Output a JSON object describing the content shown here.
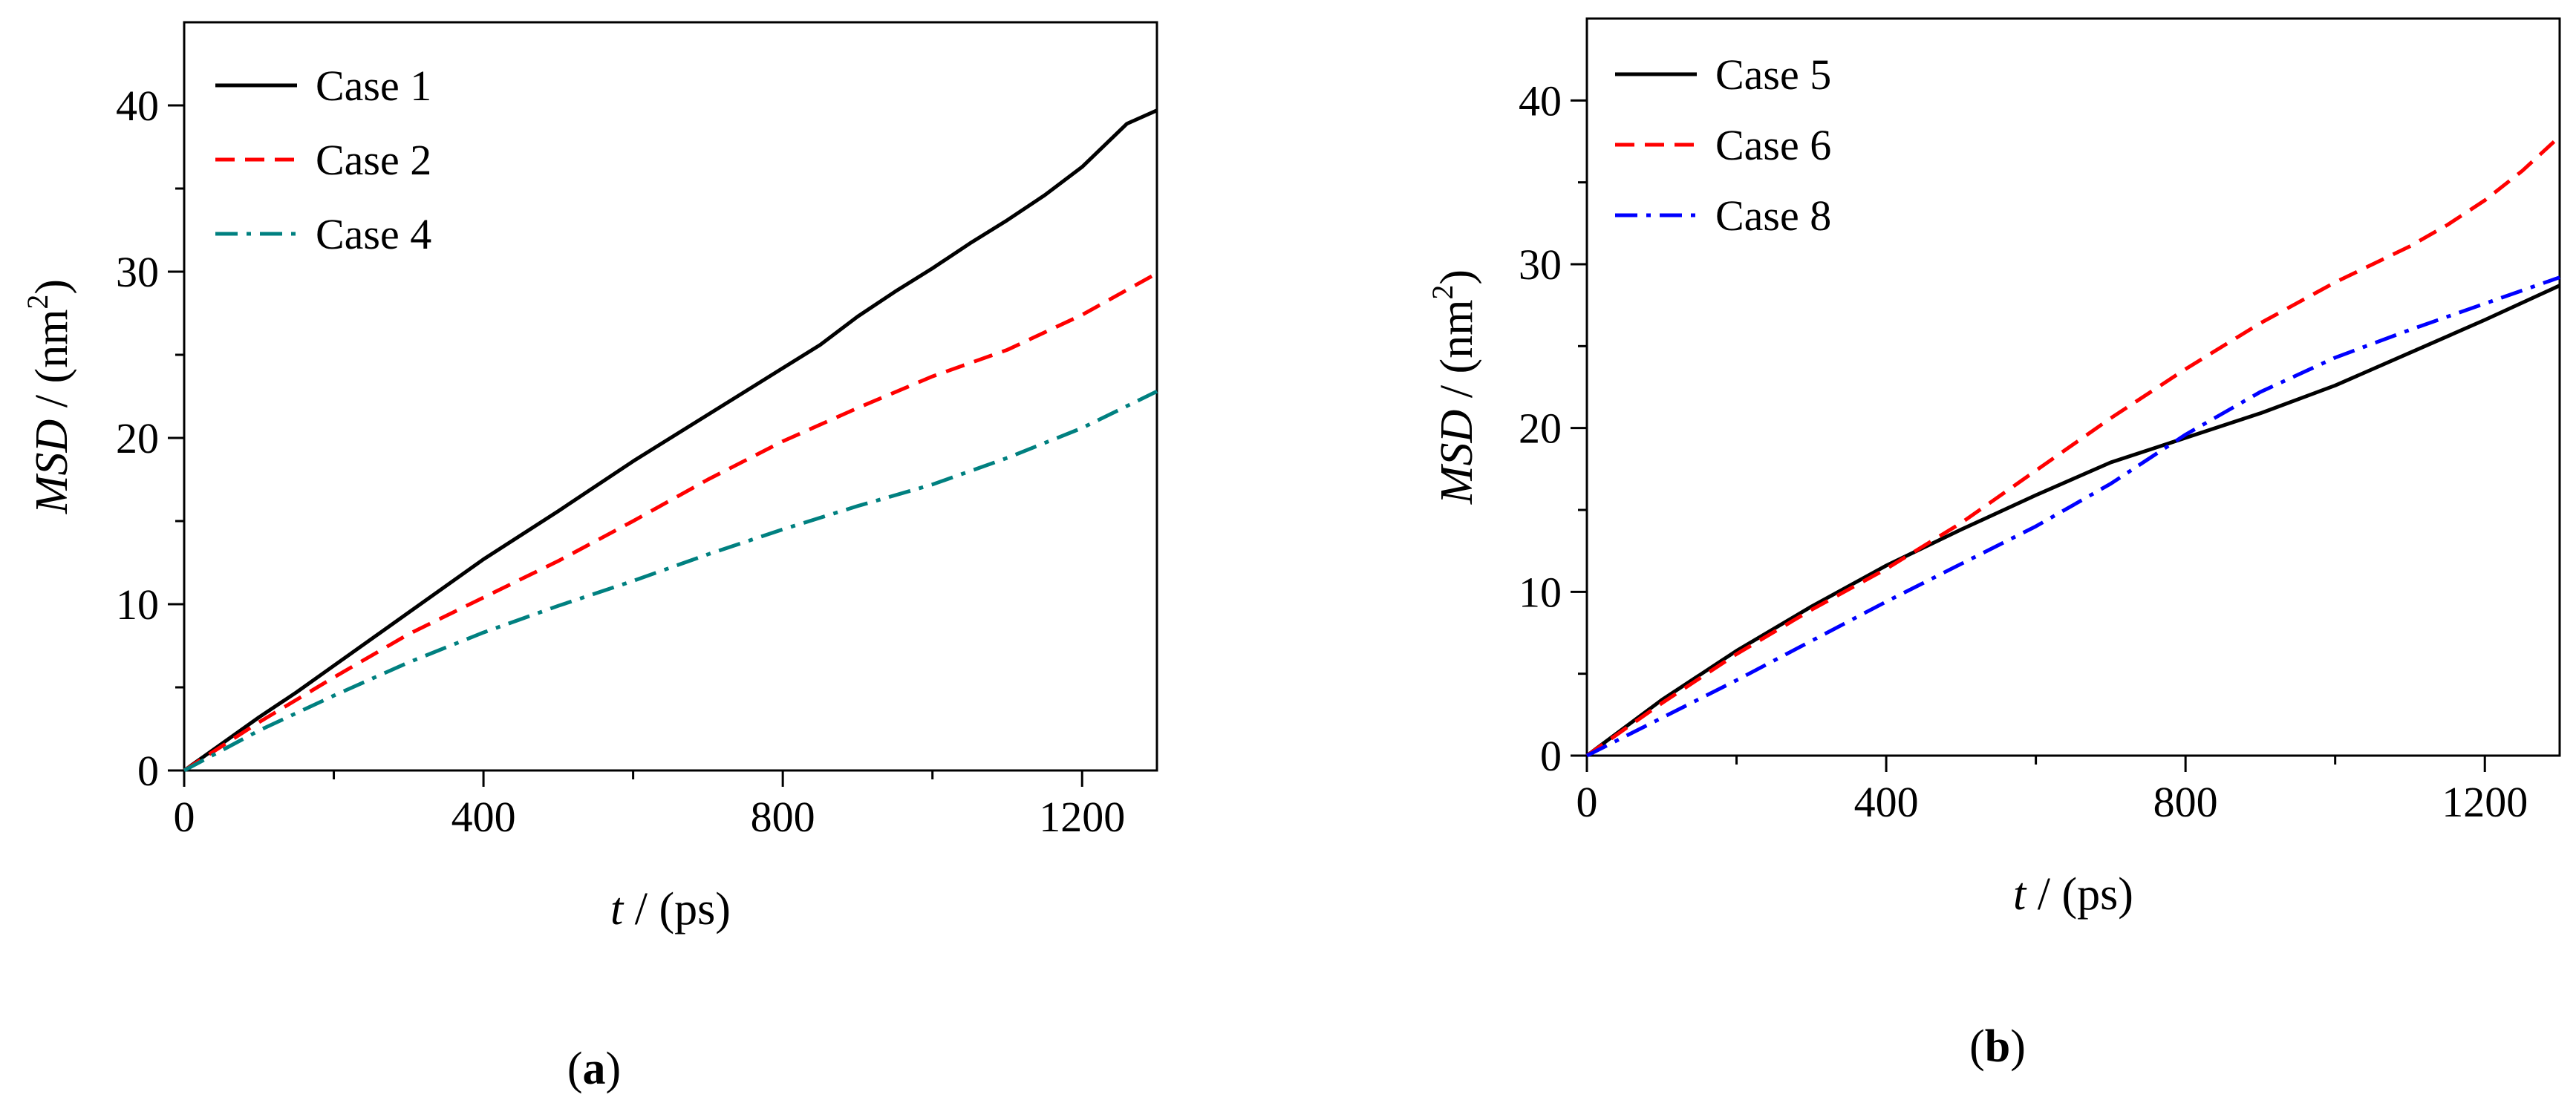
{
  "figure": {
    "panel_a_label": "a",
    "panel_b_label": "b"
  },
  "chart_data": [
    {
      "type": "line",
      "panel": "a",
      "title": "",
      "xlabel_var": "t",
      "xlabel_unit": " / (ps)",
      "ylabel_var": "MSD",
      "ylabel_unit_pre": " / (nm",
      "ylabel_sup": "2",
      "ylabel_unit_post": ")",
      "xlim": [
        0,
        1300
      ],
      "ylim": [
        0,
        45
      ],
      "xticks": [
        0,
        400,
        800,
        1200
      ],
      "xtick_labels": [
        "0",
        "400",
        "800",
        "1200"
      ],
      "yticks": [
        0,
        10,
        20,
        30,
        40
      ],
      "ytick_labels": [
        "0",
        "10",
        "20",
        "30",
        "40"
      ],
      "legend_position": "top-left",
      "series": [
        {
          "name": "Case 1",
          "color": "#000000",
          "dash": "solid",
          "x": [
            0,
            50,
            100,
            150,
            200,
            300,
            400,
            500,
            600,
            700,
            800,
            850,
            900,
            950,
            1000,
            1050,
            1100,
            1150,
            1200,
            1260,
            1300
          ],
          "y": [
            0,
            1.6,
            3.2,
            4.7,
            6.3,
            9.5,
            12.7,
            15.6,
            18.6,
            21.4,
            24.2,
            25.6,
            27.3,
            28.8,
            30.2,
            31.7,
            33.1,
            34.6,
            36.3,
            38.9,
            39.7
          ]
        },
        {
          "name": "Case 2",
          "color": "#ff0000",
          "dash": "dash",
          "x": [
            0,
            100,
            200,
            300,
            400,
            500,
            600,
            700,
            800,
            900,
            1000,
            1100,
            1200,
            1300
          ],
          "y": [
            0,
            2.9,
            5.6,
            8.2,
            10.4,
            12.6,
            15.0,
            17.5,
            19.8,
            21.8,
            23.7,
            25.3,
            27.4,
            29.9
          ]
        },
        {
          "name": "Case 4",
          "color": "#008080",
          "dash": "dashdot",
          "x": [
            0,
            100,
            200,
            300,
            400,
            500,
            600,
            700,
            800,
            900,
            1000,
            1100,
            1200,
            1300
          ],
          "y": [
            0,
            2.4,
            4.5,
            6.5,
            8.3,
            9.9,
            11.4,
            13.0,
            14.5,
            15.9,
            17.2,
            18.8,
            20.6,
            22.8
          ]
        }
      ]
    },
    {
      "type": "line",
      "panel": "b",
      "title": "",
      "xlabel_var": "t",
      "xlabel_unit": " / (ps)",
      "ylabel_var": "MSD",
      "ylabel_unit_pre": " / (nm",
      "ylabel_sup": "2",
      "ylabel_unit_post": ")",
      "xlim": [
        0,
        1300
      ],
      "ylim": [
        0,
        45
      ],
      "xticks": [
        0,
        400,
        800,
        1200
      ],
      "xtick_labels": [
        "0",
        "400",
        "800",
        "1200"
      ],
      "yticks": [
        0,
        10,
        20,
        30,
        40
      ],
      "ytick_labels": [
        "0",
        "10",
        "20",
        "30",
        "40"
      ],
      "legend_position": "top-left",
      "series": [
        {
          "name": "Case 5",
          "color": "#000000",
          "dash": "solid",
          "x": [
            0,
            100,
            200,
            300,
            400,
            500,
            600,
            700,
            800,
            900,
            1000,
            1100,
            1200,
            1300
          ],
          "y": [
            0,
            3.4,
            6.4,
            9.1,
            11.6,
            13.8,
            15.9,
            17.9,
            19.4,
            20.9,
            22.6,
            24.6,
            26.6,
            28.7
          ]
        },
        {
          "name": "Case 6",
          "color": "#ff0000",
          "dash": "dash",
          "x": [
            0,
            100,
            200,
            300,
            400,
            500,
            600,
            700,
            800,
            900,
            1000,
            1100,
            1150,
            1200,
            1250,
            1300
          ],
          "y": [
            0,
            3.2,
            6.2,
            8.9,
            11.4,
            14.2,
            17.4,
            20.6,
            23.6,
            26.4,
            28.9,
            31.1,
            32.4,
            33.9,
            35.7,
            37.8
          ]
        },
        {
          "name": "Case 8",
          "color": "#0000ff",
          "dash": "dashdot",
          "x": [
            0,
            100,
            200,
            300,
            400,
            500,
            600,
            700,
            800,
            900,
            1000,
            1100,
            1200,
            1300
          ],
          "y": [
            0,
            2.3,
            4.6,
            7.0,
            9.4,
            11.7,
            14.0,
            16.6,
            19.6,
            22.2,
            24.3,
            26.0,
            27.6,
            29.2
          ]
        }
      ]
    }
  ]
}
